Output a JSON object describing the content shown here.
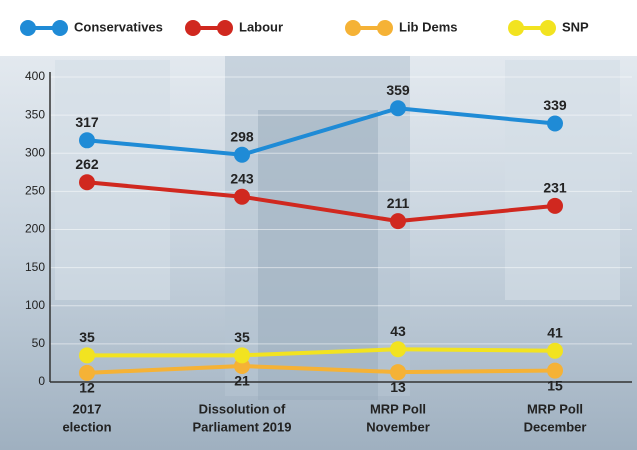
{
  "chart_data": {
    "type": "line",
    "categories": [
      [
        "2017",
        "election"
      ],
      [
        "Dissolution of",
        "Parliament 2019"
      ],
      [
        "MRP Poll",
        "November"
      ],
      [
        "MRP Poll",
        "December"
      ]
    ],
    "series": [
      {
        "name": "Conservatives",
        "color": "#1f8bd6",
        "values": [
          317,
          298,
          359,
          339
        ]
      },
      {
        "name": "Labour",
        "color": "#d0281f",
        "values": [
          262,
          243,
          211,
          231
        ]
      },
      {
        "name": "Lib Dems",
        "color": "#f5b236",
        "values": [
          12,
          21,
          13,
          15
        ]
      },
      {
        "name": "SNP",
        "color": "#f2e320",
        "values": [
          35,
          35,
          43,
          41
        ]
      }
    ],
    "ylim": [
      0,
      400
    ],
    "yticks": [
      0,
      50,
      100,
      150,
      200,
      250,
      300,
      350,
      400
    ],
    "grid": true
  }
}
